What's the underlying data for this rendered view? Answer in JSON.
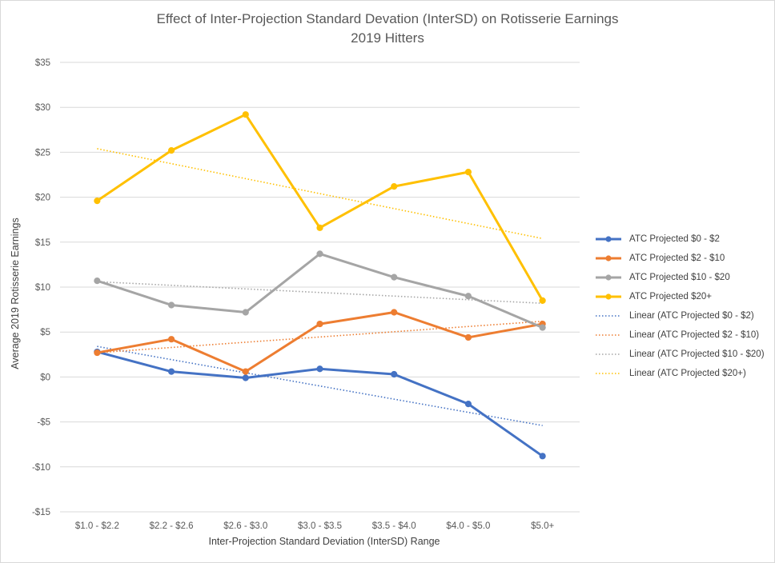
{
  "chart_data": {
    "type": "line",
    "title": "Effect of Inter-Projection Standard Devation (InterSD) on Rotisserie Earnings",
    "subtitle": "2019 Hitters",
    "xlabel": "Inter-Projection Standard Deviation (InterSD) Range",
    "ylabel": "Average 2019 Rotisserie Earnings",
    "categories": [
      "$1.0 - $2.2",
      "$2.2 - $2.6",
      "$2.6 - $3.0",
      "$3.0 - $3.5",
      "$3.5 - $4.0",
      "$4.0 - $5.0",
      "$5.0+"
    ],
    "ylim": [
      -15,
      35
    ],
    "ytick_values": [
      35,
      30,
      25,
      20,
      15,
      10,
      5,
      0,
      -5,
      -10,
      -15
    ],
    "ytick_labels": [
      "$35",
      "$30",
      "$25",
      "$20",
      "$15",
      "$10",
      "$5",
      "$0",
      "-$5",
      "-$10",
      "-$15"
    ],
    "grid": true,
    "legend_position": "right",
    "series": [
      {
        "name": "ATC Projected $0 - $2",
        "color": "#4472c4",
        "values": [
          2.8,
          0.6,
          -0.1,
          0.9,
          0.3,
          -3.0,
          -8.8
        ]
      },
      {
        "name": "ATC Projected $2 - $10",
        "color": "#ed7d31",
        "values": [
          2.7,
          4.2,
          0.6,
          5.9,
          7.2,
          4.4,
          5.9
        ]
      },
      {
        "name": "ATC Projected $10 - $20",
        "color": "#a5a5a5",
        "values": [
          10.7,
          8.0,
          7.2,
          13.7,
          11.1,
          9.0,
          5.5
        ]
      },
      {
        "name": "ATC Projected $20+",
        "color": "#ffc000",
        "values": [
          19.6,
          25.2,
          29.2,
          16.6,
          21.2,
          22.8,
          8.5
        ]
      }
    ],
    "trendlines": [
      {
        "name": "Linear (ATC Projected $0 - $2)",
        "color": "#4472c4",
        "start": 3.4,
        "end": -5.4
      },
      {
        "name": "Linear (ATC Projected $2 - $10)",
        "color": "#ed7d31",
        "start": 2.7,
        "end": 6.2
      },
      {
        "name": "Linear (ATC Projected $10 - $20)",
        "color": "#a5a5a5",
        "start": 10.6,
        "end": 8.2
      },
      {
        "name": "Linear (ATC Projected $20+)",
        "color": "#ffc000",
        "start": 25.4,
        "end": 15.4
      }
    ]
  }
}
